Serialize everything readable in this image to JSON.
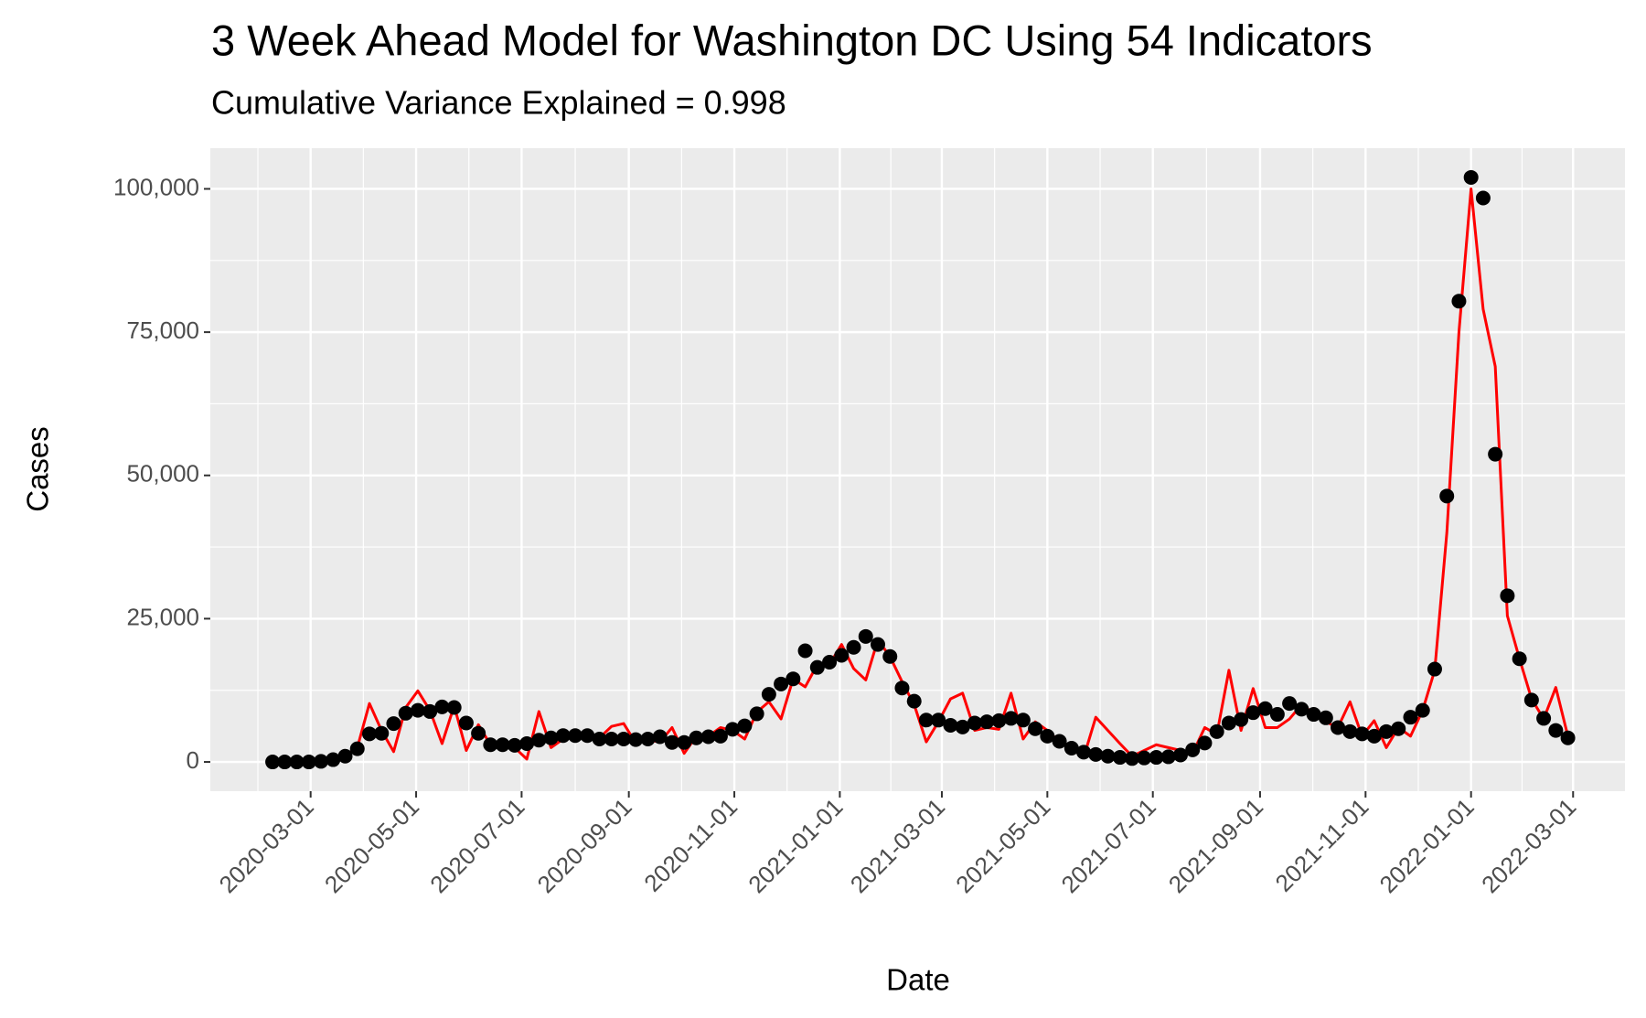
{
  "chart_data": {
    "type": "line",
    "title": "3 Week Ahead Model for Washington DC Using 54 Indicators",
    "subtitle": "Cumulative Variance Explained = 0.998",
    "x_label": "Date",
    "y_label": "Cases",
    "x": [
      "2020-02-08",
      "2020-02-15",
      "2020-02-22",
      "2020-02-29",
      "2020-03-07",
      "2020-03-14",
      "2020-03-21",
      "2020-03-28",
      "2020-04-04",
      "2020-04-11",
      "2020-04-18",
      "2020-04-25",
      "2020-05-02",
      "2020-05-09",
      "2020-05-16",
      "2020-05-23",
      "2020-05-30",
      "2020-06-06",
      "2020-06-13",
      "2020-06-20",
      "2020-06-27",
      "2020-07-04",
      "2020-07-11",
      "2020-07-18",
      "2020-07-25",
      "2020-08-01",
      "2020-08-08",
      "2020-08-15",
      "2020-08-22",
      "2020-08-29",
      "2020-09-05",
      "2020-09-12",
      "2020-09-19",
      "2020-09-26",
      "2020-10-03",
      "2020-10-10",
      "2020-10-17",
      "2020-10-24",
      "2020-10-31",
      "2020-11-07",
      "2020-11-14",
      "2020-11-21",
      "2020-11-28",
      "2020-12-05",
      "2020-12-12",
      "2020-12-19",
      "2020-12-26",
      "2021-01-02",
      "2021-01-09",
      "2021-01-16",
      "2021-01-23",
      "2021-01-30",
      "2021-02-06",
      "2021-02-13",
      "2021-02-20",
      "2021-02-27",
      "2021-03-06",
      "2021-03-13",
      "2021-03-20",
      "2021-03-27",
      "2021-04-03",
      "2021-04-10",
      "2021-04-17",
      "2021-04-24",
      "2021-05-01",
      "2021-05-08",
      "2021-05-15",
      "2021-05-22",
      "2021-05-29",
      "2021-06-05",
      "2021-06-12",
      "2021-06-19",
      "2021-06-26",
      "2021-07-03",
      "2021-07-10",
      "2021-07-17",
      "2021-07-24",
      "2021-07-31",
      "2021-08-07",
      "2021-08-14",
      "2021-08-21",
      "2021-08-28",
      "2021-09-04",
      "2021-09-11",
      "2021-09-18",
      "2021-09-25",
      "2021-10-02",
      "2021-10-09",
      "2021-10-16",
      "2021-10-23",
      "2021-10-30",
      "2021-11-06",
      "2021-11-13",
      "2021-11-20",
      "2021-11-27",
      "2021-12-04",
      "2021-12-11",
      "2021-12-18",
      "2021-12-25",
      "2022-01-01",
      "2022-01-08",
      "2022-01-15",
      "2022-01-22",
      "2022-01-29",
      "2022-02-05",
      "2022-02-12",
      "2022-02-19",
      "2022-02-26"
    ],
    "series": [
      {
        "mark": "line",
        "color": "#ff0000",
        "values": [
          0,
          0,
          0,
          0,
          200,
          500,
          1000,
          2500,
          10200,
          5500,
          1800,
          9500,
          12400,
          9000,
          3200,
          9800,
          2000,
          6500,
          3000,
          3000,
          2500,
          500,
          8800,
          2500,
          4000,
          4800,
          4500,
          4200,
          6200,
          6700,
          3300,
          3800,
          3500,
          6000,
          1500,
          4500,
          4500,
          6000,
          5500,
          4000,
          8700,
          10500,
          7500,
          14500,
          13100,
          17000,
          17000,
          20500,
          16300,
          14300,
          21300,
          18400,
          14000,
          10000,
          3500,
          7000,
          11000,
          12000,
          5500,
          6000,
          5700,
          12000,
          4000,
          7000,
          5500,
          3500,
          2400,
          800,
          7800,
          5500,
          3200,
          1000,
          2000,
          3000,
          2500,
          2000,
          1500,
          6000,
          4800,
          16000,
          5500,
          12800,
          6000,
          6000,
          7500,
          10000,
          8500,
          7000,
          6000,
          10500,
          4500,
          7200,
          2500,
          6000,
          4500,
          9000,
          16000,
          40000,
          75000,
          100000,
          79000,
          69000,
          25500,
          18000,
          11000,
          7500,
          13000,
          4500
        ]
      },
      {
        "mark": "points",
        "color": "#000000",
        "values": [
          0,
          0,
          0,
          0,
          100,
          400,
          1000,
          2300,
          4900,
          5000,
          6700,
          8500,
          9000,
          8800,
          9600,
          9500,
          6800,
          5000,
          3000,
          3000,
          2900,
          3200,
          3800,
          4200,
          4600,
          4600,
          4600,
          4000,
          4000,
          4000,
          3900,
          4000,
          4400,
          3400,
          3400,
          4200,
          4400,
          4500,
          5700,
          6300,
          8400,
          11800,
          13600,
          14500,
          19400,
          16500,
          17400,
          18600,
          20000,
          21900,
          20500,
          18400,
          12900,
          10600,
          7300,
          7300,
          6400,
          6100,
          6800,
          7000,
          7200,
          7600,
          7300,
          5800,
          4500,
          3600,
          2400,
          1700,
          1300,
          1000,
          800,
          600,
          700,
          800,
          900,
          1200,
          2100,
          3300,
          5300,
          6800,
          7400,
          8600,
          9300,
          8300,
          10200,
          9200,
          8300,
          7700,
          6000,
          5300,
          4900,
          4500,
          5300,
          5800,
          7800,
          9000,
          16200,
          46400,
          80400,
          102000,
          98400,
          53700,
          29000,
          18000,
          10800,
          7600,
          5500,
          4200
        ]
      }
    ],
    "xlim": [
      "2020-01-03",
      "2022-03-31"
    ],
    "xticks": [
      "2020-03-01",
      "2020-05-01",
      "2020-07-01",
      "2020-09-01",
      "2020-11-01",
      "2021-01-01",
      "2021-03-01",
      "2021-05-01",
      "2021-07-01",
      "2021-09-01",
      "2021-11-01",
      "2022-01-01",
      "2022-03-01"
    ],
    "ylim": [
      -5100,
      107100
    ],
    "yticks": [
      0,
      {
        "value": 25000,
        "label": "25,000"
      },
      {
        "value": 50000,
        "label": "50,000"
      },
      {
        "value": 75000,
        "label": "75,000"
      },
      {
        "value": 100000,
        "label": "100,000"
      }
    ],
    "grid": true,
    "minor_grid": true
  }
}
